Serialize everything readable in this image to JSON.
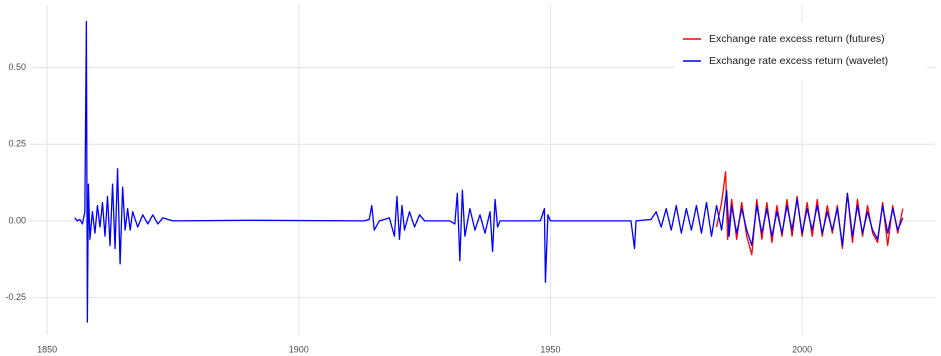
{
  "chart_data": {
    "type": "line",
    "xlim": [
      1846.6,
      2026.4
    ],
    "ylim": [
      -0.372,
      0.704
    ],
    "xticks": [
      1850,
      1900,
      1950,
      2000
    ],
    "yticks": [
      -0.25,
      {
        "value": 0,
        "label": "0.00"
      },
      0.25,
      {
        "value": 0.5,
        "label": "0.50"
      }
    ],
    "grid": true,
    "legend": "top-right",
    "series": [
      {
        "name": "Exchange rate excess return (futures)",
        "color": "#ff0000",
        "x": [
          1983,
          1984,
          1984.8,
          1985.2,
          1986,
          1987,
          1988,
          1989,
          1990,
          1991,
          1992,
          1993,
          1994,
          1995,
          1996,
          1997,
          1998,
          1999,
          2000,
          2001,
          2002,
          2003,
          2004,
          2005,
          2006,
          2007,
          2008,
          2009,
          2010,
          2011,
          2012,
          2013,
          2014,
          2015,
          2016,
          2017,
          2018,
          2019,
          2020
        ],
        "values": [
          -0.02,
          0.06,
          0.16,
          -0.06,
          0.07,
          -0.06,
          0.06,
          -0.05,
          -0.11,
          0.07,
          -0.06,
          0.06,
          -0.07,
          0.05,
          -0.05,
          0.07,
          -0.05,
          0.08,
          -0.05,
          0.06,
          -0.05,
          0.07,
          -0.05,
          0.05,
          -0.04,
          0.05,
          -0.09,
          0.09,
          -0.07,
          0.07,
          -0.05,
          0.05,
          -0.04,
          -0.07,
          0.06,
          -0.08,
          0.05,
          -0.04,
          0.04
        ]
      },
      {
        "name": "Exchange rate excess return (wavelet)",
        "color": "#0000ff",
        "x": [
          1855.5,
          1856,
          1856.5,
          1857,
          1857.5,
          1857.8,
          1858,
          1858.2,
          1858.5,
          1859,
          1859.5,
          1860,
          1860.5,
          1861,
          1861.5,
          1862,
          1862.5,
          1863,
          1863.5,
          1864,
          1864.5,
          1865,
          1865.5,
          1866,
          1866.5,
          1867,
          1868,
          1869,
          1870,
          1871,
          1872,
          1873,
          1875,
          1890,
          1913,
          1914,
          1914.5,
          1915,
          1916,
          1918,
          1919,
          1919.5,
          1920,
          1920.5,
          1921,
          1922,
          1923,
          1924,
          1925,
          1930,
          1931,
          1931.5,
          1932,
          1932.5,
          1933,
          1934,
          1935,
          1936,
          1937,
          1938,
          1938.5,
          1939,
          1939.5,
          1940,
          1948,
          1948.8,
          1949,
          1949.5,
          1950,
          1966,
          1966.7,
          1967,
          1970,
          1971,
          1972,
          1973,
          1974,
          1975,
          1976,
          1977,
          1978,
          1979,
          1980,
          1981,
          1982,
          1983,
          1984,
          1985,
          1985.5,
          1986,
          1987,
          1988,
          1989,
          1990,
          1991,
          1992,
          1993,
          1994,
          1995,
          1996,
          1997,
          1998,
          1999,
          2000,
          2001,
          2002,
          2003,
          2004,
          2005,
          2006,
          2007,
          2008,
          2009,
          2010,
          2011,
          2012,
          2013,
          2014,
          2015,
          2016,
          2017,
          2018,
          2019,
          2020
        ],
        "values": [
          0.01,
          0,
          0.005,
          -0.01,
          0.03,
          0.65,
          -0.33,
          0.12,
          -0.06,
          0.03,
          -0.04,
          0.05,
          -0.02,
          0.06,
          -0.05,
          0.08,
          -0.08,
          0.12,
          -0.09,
          0.17,
          -0.14,
          0.11,
          -0.03,
          0.04,
          -0.03,
          0.03,
          -0.02,
          0.02,
          -0.01,
          0.02,
          -0.01,
          0.01,
          0,
          0.002,
          0,
          0.005,
          0.05,
          -0.03,
          0,
          0.01,
          -0.05,
          0.08,
          -0.06,
          0.05,
          -0.03,
          0.03,
          -0.02,
          0.02,
          0,
          0,
          -0.01,
          0.09,
          -0.13,
          0.1,
          -0.05,
          0.04,
          -0.03,
          0.02,
          -0.04,
          0.03,
          -0.1,
          0.07,
          -0.02,
          0,
          0,
          0.04,
          -0.2,
          0.02,
          0,
          0,
          -0.09,
          0,
          0.005,
          0.03,
          -0.02,
          0.04,
          -0.03,
          0.05,
          -0.04,
          0.04,
          -0.03,
          0.05,
          -0.04,
          0.06,
          -0.05,
          0.05,
          -0.03,
          0.1,
          -0.05,
          0.05,
          -0.04,
          0.04,
          -0.03,
          -0.08,
          0.05,
          -0.04,
          0.04,
          -0.05,
          0.03,
          -0.04,
          0.05,
          -0.03,
          0.07,
          -0.04,
          0.04,
          -0.03,
          0.05,
          -0.04,
          0.03,
          -0.03,
          0.04,
          -0.08,
          0.09,
          -0.05,
          0.05,
          -0.04,
          0.03,
          -0.03,
          -0.06,
          0.05,
          -0.04,
          0.04,
          -0.03,
          0.01
        ]
      }
    ]
  }
}
